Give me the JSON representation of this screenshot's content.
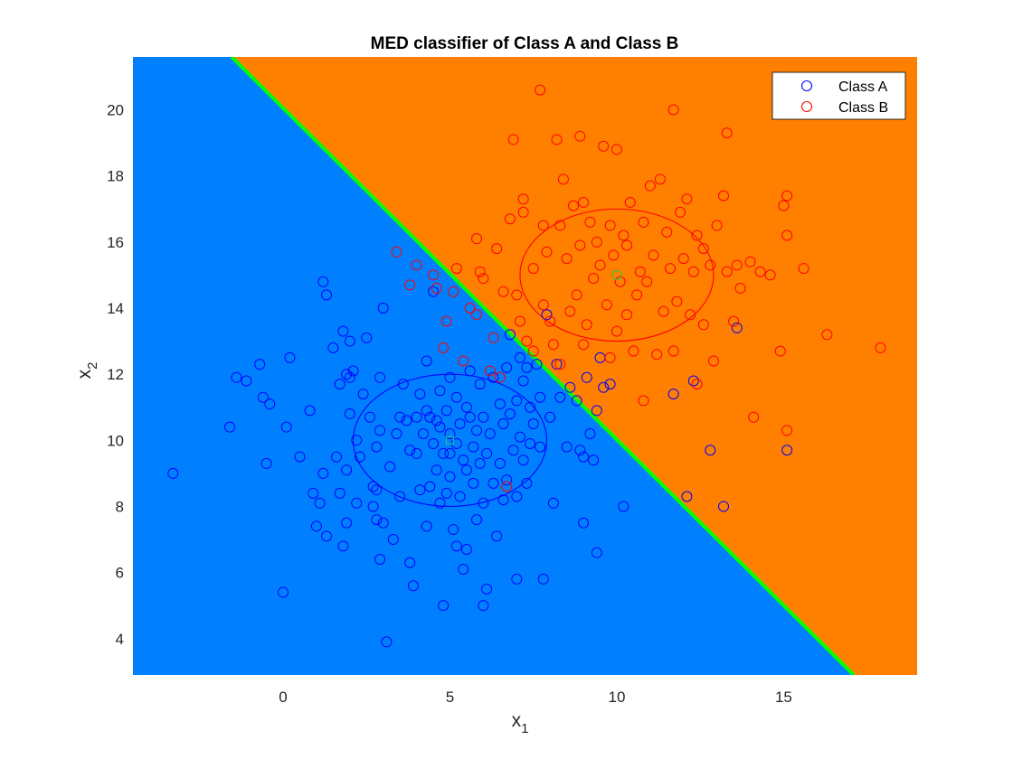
{
  "chart_data": {
    "type": "scatter",
    "title": "MED classifier of Class A and Class B",
    "xlabel": {
      "base": "x",
      "sub": "1"
    },
    "ylabel": {
      "base": "x",
      "sub": "2"
    },
    "xlim": [
      -4.5,
      19
    ],
    "ylim": [
      2.9,
      21.6
    ],
    "xticks": [
      0,
      5,
      10,
      15
    ],
    "yticks": [
      4,
      6,
      8,
      10,
      12,
      14,
      16,
      18,
      20
    ],
    "legend_position": "top-right",
    "region_colors": {
      "class_a": "#0080ff",
      "class_b": "#ff8000"
    },
    "decision_boundary": {
      "color": "#00ff00",
      "line": [
        [
          -1.54,
          21.6
        ],
        [
          17.1,
          2.9
        ]
      ]
    },
    "series": [
      {
        "name": "Class A",
        "color": "#0000ff",
        "marker": "circle",
        "prototype": [
          5,
          10
        ],
        "std_contour": {
          "cx": 5,
          "cy": 10,
          "rx": 2.9,
          "ry": 2.0
        },
        "points": [
          [
            -3.3,
            9
          ],
          [
            -1.6,
            10.4
          ],
          [
            -1.4,
            11.9
          ],
          [
            -1.1,
            11.8
          ],
          [
            -0.7,
            12.3
          ],
          [
            -0.6,
            11.3
          ],
          [
            -0.5,
            9.3
          ],
          [
            -0.4,
            11.1
          ],
          [
            0,
            5.4
          ],
          [
            0.1,
            10.4
          ],
          [
            0.2,
            12.5
          ],
          [
            0.5,
            9.5
          ],
          [
            0.8,
            10.9
          ],
          [
            0.9,
            8.4
          ],
          [
            1,
            7.4
          ],
          [
            1.1,
            8.1
          ],
          [
            1.2,
            14.8
          ],
          [
            1.2,
            9
          ],
          [
            1.3,
            14.4
          ],
          [
            1.3,
            7.1
          ],
          [
            1.5,
            12.8
          ],
          [
            1.6,
            9.5
          ],
          [
            1.7,
            11.7
          ],
          [
            1.7,
            8.4
          ],
          [
            1.8,
            13.3
          ],
          [
            1.8,
            6.8
          ],
          [
            1.9,
            12
          ],
          [
            1.9,
            9.1
          ],
          [
            1.9,
            7.5
          ],
          [
            2,
            13
          ],
          [
            2,
            11.9
          ],
          [
            2,
            10.8
          ],
          [
            2.1,
            12.1
          ],
          [
            2.2,
            10
          ],
          [
            2.2,
            8.1
          ],
          [
            2.3,
            9.5
          ],
          [
            2.4,
            11.4
          ],
          [
            2.5,
            13.1
          ],
          [
            2.6,
            10.7
          ],
          [
            2.7,
            8.6
          ],
          [
            2.7,
            8
          ],
          [
            2.8,
            9.8
          ],
          [
            2.8,
            8.5
          ],
          [
            2.8,
            7.6
          ],
          [
            2.9,
            11.9
          ],
          [
            2.9,
            10.3
          ],
          [
            2.9,
            6.4
          ],
          [
            3,
            14
          ],
          [
            3,
            7.5
          ],
          [
            3.1,
            3.9
          ],
          [
            3.2,
            9.2
          ],
          [
            3.3,
            7
          ],
          [
            3.4,
            10.2
          ],
          [
            3.5,
            10.7
          ],
          [
            3.5,
            8.3
          ],
          [
            3.6,
            11.7
          ],
          [
            3.7,
            10.6
          ],
          [
            3.8,
            9.7
          ],
          [
            3.8,
            6.3
          ],
          [
            3.9,
            5.6
          ],
          [
            4,
            10.7
          ],
          [
            4,
            9.6
          ],
          [
            4.1,
            11.4
          ],
          [
            4.1,
            8.5
          ],
          [
            4.2,
            10.2
          ],
          [
            4.3,
            12.4
          ],
          [
            4.3,
            10.9
          ],
          [
            4.3,
            7.4
          ],
          [
            4.4,
            10.7
          ],
          [
            4.4,
            8.6
          ],
          [
            4.5,
            14.5
          ],
          [
            4.5,
            9.9
          ],
          [
            4.6,
            10.6
          ],
          [
            4.6,
            9.1
          ],
          [
            4.7,
            11.5
          ],
          [
            4.7,
            10.4
          ],
          [
            4.7,
            8.1
          ],
          [
            4.8,
            9.6
          ],
          [
            4.8,
            5
          ],
          [
            4.9,
            10.9
          ],
          [
            4.9,
            8.4
          ],
          [
            5,
            11.9
          ],
          [
            5,
            10.2
          ],
          [
            5,
            9.6
          ],
          [
            5,
            8.9
          ],
          [
            5.1,
            7.3
          ],
          [
            5.2,
            11.3
          ],
          [
            5.2,
            9.9
          ],
          [
            5.2,
            6.8
          ],
          [
            5.3,
            10.5
          ],
          [
            5.3,
            8.3
          ],
          [
            5.4,
            9.4
          ],
          [
            5.4,
            6.1
          ],
          [
            5.5,
            11
          ],
          [
            5.5,
            9.1
          ],
          [
            5.5,
            6.7
          ],
          [
            5.6,
            12.1
          ],
          [
            5.6,
            10.7
          ],
          [
            5.7,
            9.8
          ],
          [
            5.7,
            8.7
          ],
          [
            5.8,
            10.3
          ],
          [
            5.8,
            7.6
          ],
          [
            5.9,
            11.7
          ],
          [
            5.9,
            9.3
          ],
          [
            6,
            10.7
          ],
          [
            6,
            8.1
          ],
          [
            6,
            5
          ],
          [
            6.1,
            9.6
          ],
          [
            6.1,
            5.5
          ],
          [
            6.2,
            10.2
          ],
          [
            6.3,
            11.9
          ],
          [
            6.3,
            8.7
          ],
          [
            6.4,
            7.1
          ],
          [
            6.5,
            11.1
          ],
          [
            6.5,
            9.3
          ],
          [
            6.6,
            10.5
          ],
          [
            6.6,
            8.2
          ],
          [
            6.7,
            12.2
          ],
          [
            6.7,
            8.8
          ],
          [
            6.8,
            13.2
          ],
          [
            6.8,
            10.8
          ],
          [
            6.9,
            9.7
          ],
          [
            7,
            11.2
          ],
          [
            7,
            8.3
          ],
          [
            7,
            5.8
          ],
          [
            7.1,
            12.5
          ],
          [
            7.1,
            10.1
          ],
          [
            7.2,
            11.8
          ],
          [
            7.2,
            9.4
          ],
          [
            7.3,
            12.2
          ],
          [
            7.3,
            8.7
          ],
          [
            7.4,
            11
          ],
          [
            7.4,
            9.9
          ],
          [
            7.5,
            10.5
          ],
          [
            7.6,
            12.3
          ],
          [
            7.7,
            11.3
          ],
          [
            7.7,
            9.8
          ],
          [
            7.8,
            5.8
          ],
          [
            7.9,
            13.8
          ],
          [
            8,
            10.7
          ],
          [
            8.1,
            8.1
          ],
          [
            8.2,
            12.3
          ],
          [
            8.3,
            11.3
          ],
          [
            8.5,
            9.8
          ],
          [
            8.6,
            11.6
          ],
          [
            8.8,
            11.2
          ],
          [
            8.9,
            9.7
          ],
          [
            9,
            9.5
          ],
          [
            9,
            7.5
          ],
          [
            9.1,
            11.9
          ],
          [
            9.2,
            10.2
          ],
          [
            9.3,
            9.4
          ],
          [
            9.4,
            10.9
          ],
          [
            9.4,
            6.6
          ],
          [
            9.5,
            12.5
          ],
          [
            9.6,
            11.6
          ],
          [
            9.8,
            11.7
          ],
          [
            10.2,
            8
          ],
          [
            11.7,
            11.4
          ],
          [
            12.1,
            8.3
          ],
          [
            12.3,
            11.8
          ],
          [
            12.8,
            9.7
          ],
          [
            13.2,
            8
          ],
          [
            13.6,
            13.4
          ],
          [
            15.1,
            9.7
          ]
        ]
      },
      {
        "name": "Class B",
        "color": "#ff0000",
        "marker": "circle",
        "prototype": [
          10,
          15
        ],
        "std_contour": {
          "cx": 10,
          "cy": 15,
          "rx": 2.9,
          "ry": 2.0
        },
        "points": [
          [
            3.4,
            15.7
          ],
          [
            3.8,
            14.7
          ],
          [
            4,
            15.3
          ],
          [
            4.5,
            15
          ],
          [
            4.6,
            14.6
          ],
          [
            4.8,
            12.8
          ],
          [
            4.9,
            13.6
          ],
          [
            5.1,
            14.5
          ],
          [
            5.2,
            15.2
          ],
          [
            5.4,
            12.4
          ],
          [
            5.6,
            14
          ],
          [
            5.8,
            13.8
          ],
          [
            5.8,
            16.1
          ],
          [
            5.9,
            15.1
          ],
          [
            6,
            14.9
          ],
          [
            6.2,
            12.1
          ],
          [
            6.3,
            13.1
          ],
          [
            6.4,
            15.8
          ],
          [
            6.5,
            11.9
          ],
          [
            6.6,
            14.5
          ],
          [
            6.7,
            8.6
          ],
          [
            6.8,
            16.7
          ],
          [
            6.9,
            19.1
          ],
          [
            7,
            14.4
          ],
          [
            7.1,
            13.6
          ],
          [
            7.2,
            17.3
          ],
          [
            7.2,
            16.9
          ],
          [
            7.3,
            13
          ],
          [
            7.5,
            12.7
          ],
          [
            7.5,
            15.2
          ],
          [
            7.7,
            20.6
          ],
          [
            7.8,
            16.5
          ],
          [
            7.8,
            14.1
          ],
          [
            7.9,
            15.7
          ],
          [
            8,
            13.6
          ],
          [
            8.1,
            12.9
          ],
          [
            8.2,
            19.1
          ],
          [
            8.3,
            16.5
          ],
          [
            8.3,
            12.3
          ],
          [
            8.4,
            17.9
          ],
          [
            8.5,
            15.5
          ],
          [
            8.6,
            13.9
          ],
          [
            8.7,
            17.1
          ],
          [
            8.8,
            14.4
          ],
          [
            8.9,
            15.9
          ],
          [
            8.9,
            19.2
          ],
          [
            9,
            17.2
          ],
          [
            9,
            12.9
          ],
          [
            9.1,
            13.5
          ],
          [
            9.2,
            16.6
          ],
          [
            9.3,
            14.9
          ],
          [
            9.4,
            16
          ],
          [
            9.5,
            15.3
          ],
          [
            9.6,
            18.9
          ],
          [
            9.7,
            14.1
          ],
          [
            9.8,
            16.5
          ],
          [
            9.8,
            12.5
          ],
          [
            9.9,
            15.6
          ],
          [
            10,
            18.8
          ],
          [
            10,
            13.3
          ],
          [
            10.1,
            14.8
          ],
          [
            10.2,
            16.2
          ],
          [
            10.3,
            13.8
          ],
          [
            10.3,
            15.9
          ],
          [
            10.4,
            17.2
          ],
          [
            10.5,
            12.7
          ],
          [
            10.6,
            14.4
          ],
          [
            10.7,
            15.1
          ],
          [
            10.8,
            16.6
          ],
          [
            10.8,
            11.2
          ],
          [
            10.9,
            14.8
          ],
          [
            11,
            17.7
          ],
          [
            11.1,
            15.6
          ],
          [
            11.2,
            12.6
          ],
          [
            11.3,
            17.9
          ],
          [
            11.4,
            13.9
          ],
          [
            11.5,
            16.3
          ],
          [
            11.6,
            15.2
          ],
          [
            11.7,
            20
          ],
          [
            11.7,
            12.7
          ],
          [
            11.8,
            14.2
          ],
          [
            11.9,
            16.9
          ],
          [
            12,
            15.5
          ],
          [
            12.1,
            17.3
          ],
          [
            12.2,
            13.8
          ],
          [
            12.3,
            15.1
          ],
          [
            12.4,
            16.2
          ],
          [
            12.4,
            11.7
          ],
          [
            12.6,
            15.8
          ],
          [
            12.6,
            13.5
          ],
          [
            12.8,
            15.3
          ],
          [
            12.9,
            12.4
          ],
          [
            13,
            16.5
          ],
          [
            13.2,
            17.4
          ],
          [
            13.3,
            15.1
          ],
          [
            13.3,
            19.3
          ],
          [
            13.5,
            13.6
          ],
          [
            13.6,
            15.3
          ],
          [
            13.7,
            14.6
          ],
          [
            14,
            15.4
          ],
          [
            14.1,
            10.7
          ],
          [
            14.3,
            15.1
          ],
          [
            14.6,
            15
          ],
          [
            14.9,
            12.7
          ],
          [
            15,
            17.1
          ],
          [
            15.1,
            16.2
          ],
          [
            15.1,
            17.4
          ],
          [
            15.1,
            10.3
          ],
          [
            15.6,
            15.2
          ],
          [
            16.3,
            13.2
          ],
          [
            17.9,
            12.8
          ]
        ]
      }
    ]
  }
}
